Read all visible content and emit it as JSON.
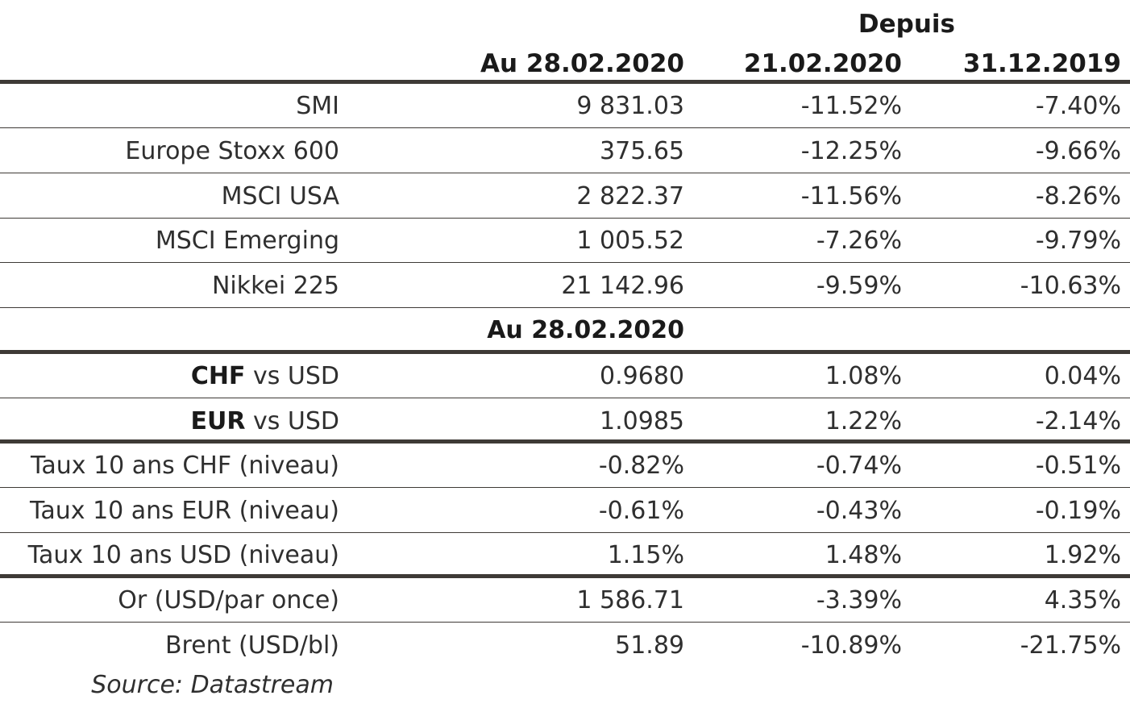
{
  "header": {
    "depuis": "Depuis",
    "col_date": "Au 28.02.2020",
    "col_since_1": "21.02.2020",
    "col_since_2": "31.12.2019"
  },
  "indices": [
    {
      "label": "SMI",
      "value": "9 831.03",
      "chg_1": "-11.52%",
      "chg_2": "-7.40%"
    },
    {
      "label": "Europe Stoxx 600",
      "value": "375.65",
      "chg_1": "-12.25%",
      "chg_2": "-9.66%"
    },
    {
      "label": "MSCI USA",
      "value": "2 822.37",
      "chg_1": "-11.56%",
      "chg_2": "-8.26%"
    },
    {
      "label": "MSCI Emerging",
      "value": "1 005.52",
      "chg_1": "-7.26%",
      "chg_2": "-9.79%"
    },
    {
      "label": "Nikkei 225",
      "value": "21 142.96",
      "chg_1": "-9.59%",
      "chg_2": "-10.63%"
    }
  ],
  "subheader": "Au 28.02.2020",
  "fx": [
    {
      "label_bold": "CHF",
      "label_rest": " vs USD",
      "value": "0.9680",
      "chg_1": "1.08%",
      "chg_2": "0.04%"
    },
    {
      "label_bold": "EUR",
      "label_rest": " vs USD",
      "value": "1.0985",
      "chg_1": "1.22%",
      "chg_2": "-2.14%"
    }
  ],
  "rates": [
    {
      "label": "Taux 10 ans CHF (niveau)",
      "value": "-0.82%",
      "chg_1": "-0.74%",
      "chg_2": "-0.51%"
    },
    {
      "label": "Taux 10 ans EUR (niveau)",
      "value": "-0.61%",
      "chg_1": "-0.43%",
      "chg_2": "-0.19%"
    },
    {
      "label": "Taux 10 ans USD (niveau)",
      "value": "1.15%",
      "chg_1": "1.48%",
      "chg_2": "1.92%"
    }
  ],
  "commodities": [
    {
      "label": "Or (USD/par once)",
      "value": "1 586.71",
      "chg_1": "-3.39%",
      "chg_2": "4.35%"
    },
    {
      "label": "Brent (USD/bl)",
      "value": "51.89",
      "chg_1": "-10.89%",
      "chg_2": "-21.75%"
    }
  ],
  "source": "Source: Datastream"
}
